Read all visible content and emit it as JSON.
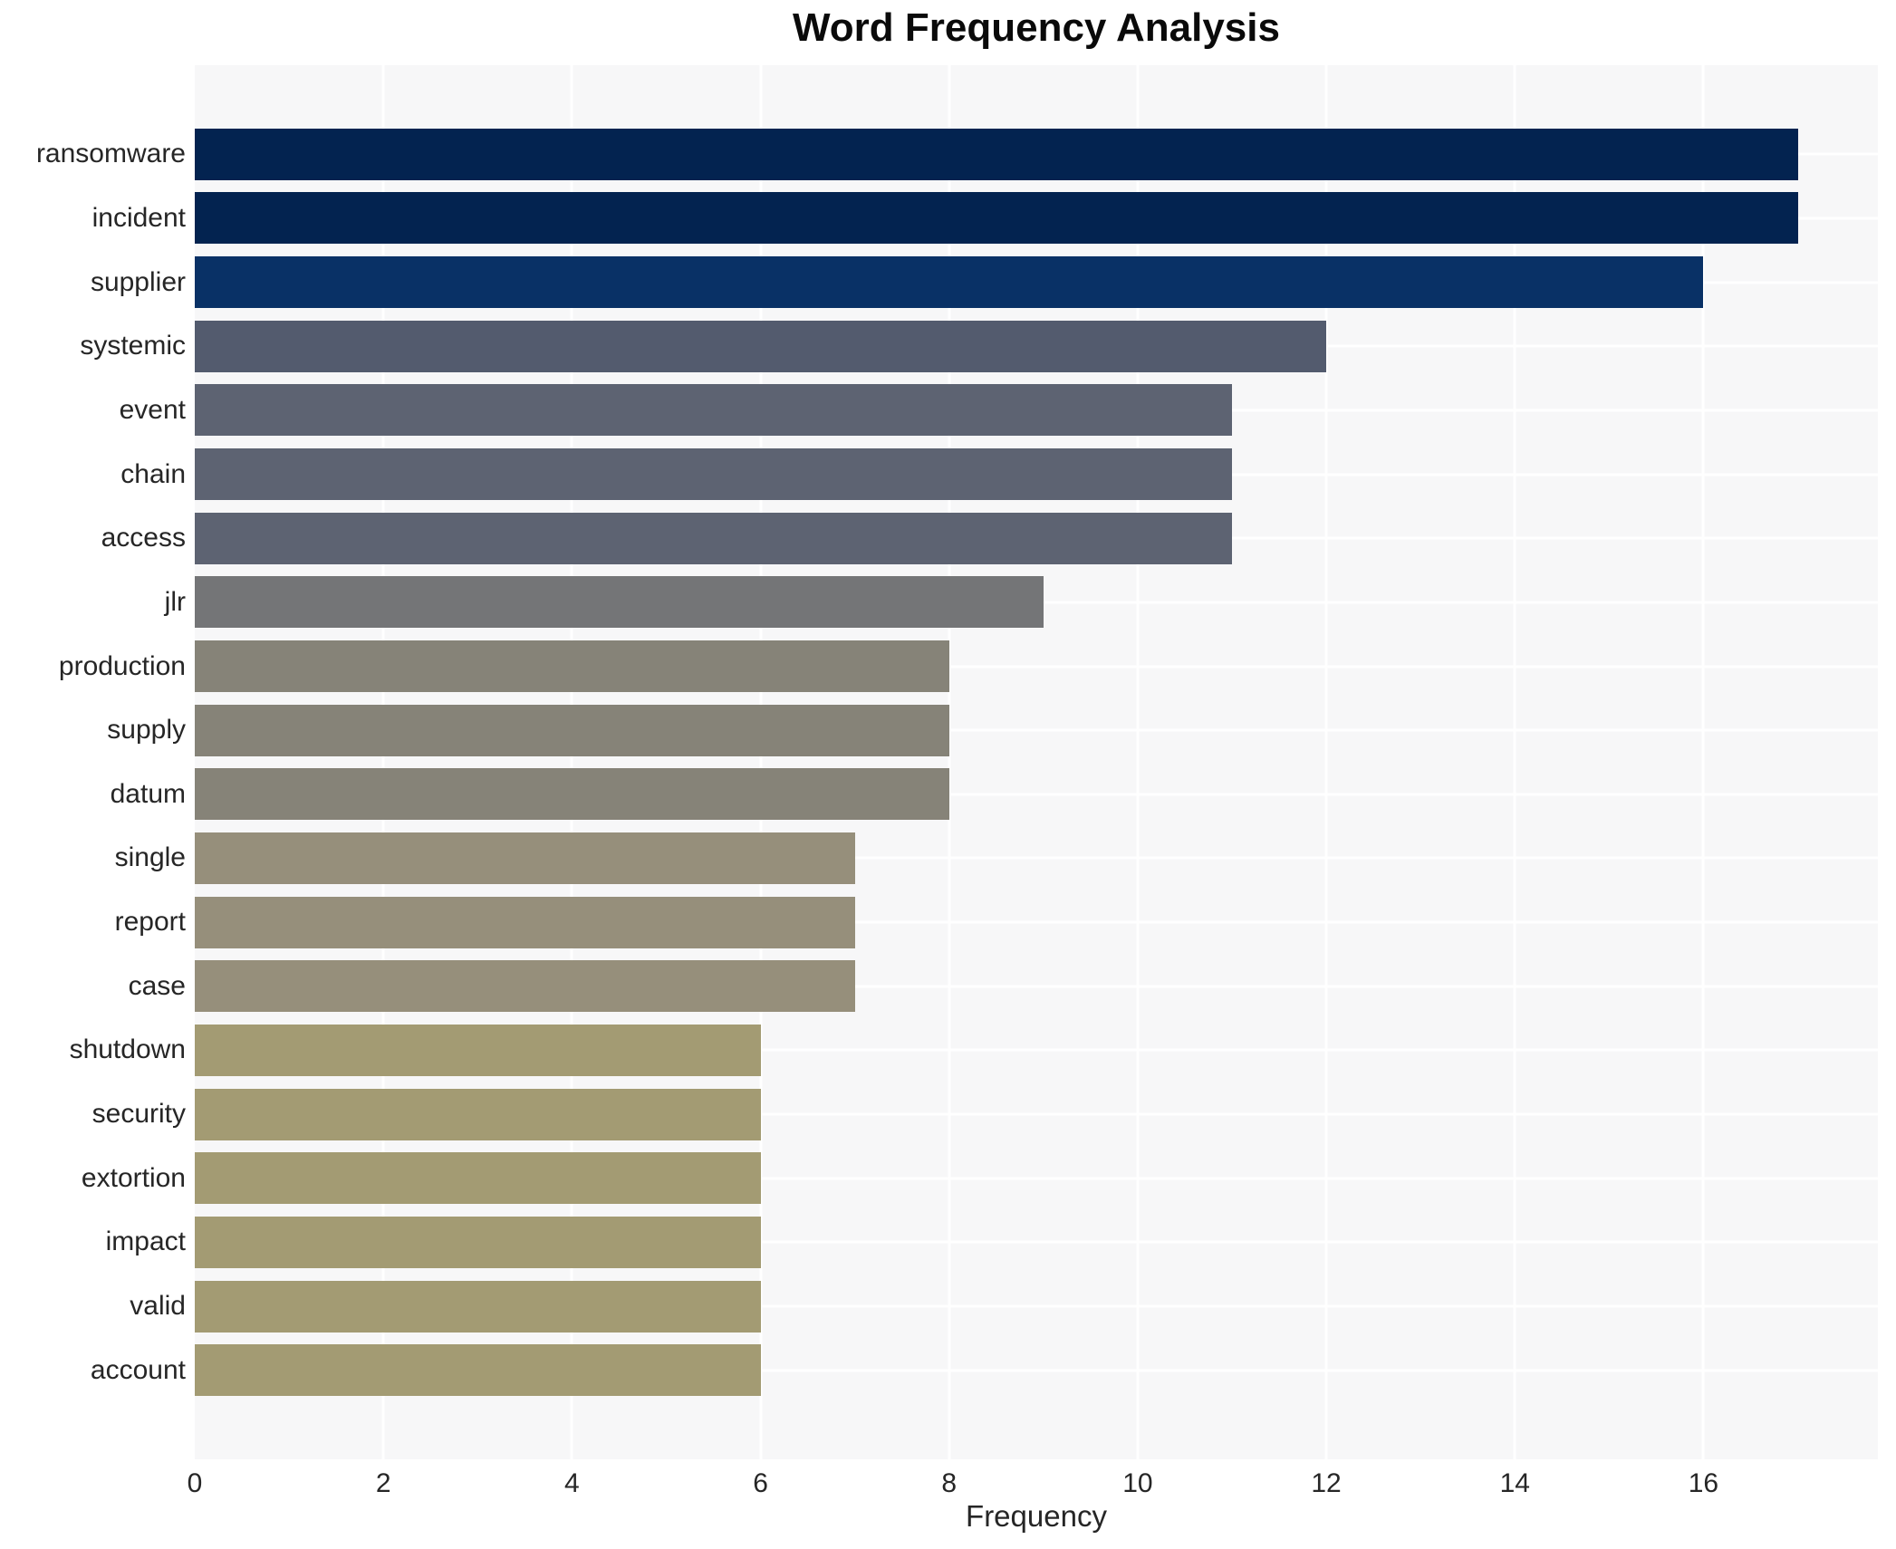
{
  "title": "Word Frequency Analysis",
  "chart_data": {
    "type": "bar",
    "orientation": "horizontal",
    "title": "Word Frequency Analysis",
    "xlabel": "Frequency",
    "ylabel": "",
    "categories": [
      "ransomware",
      "incident",
      "supplier",
      "systemic",
      "event",
      "chain",
      "access",
      "jlr",
      "production",
      "supply",
      "datum",
      "single",
      "report",
      "case",
      "shutdown",
      "security",
      "extortion",
      "impact",
      "valid",
      "account"
    ],
    "values": [
      17,
      17,
      16,
      12,
      11,
      11,
      11,
      9,
      8,
      8,
      8,
      7,
      7,
      7,
      6,
      6,
      6,
      6,
      6,
      6
    ],
    "bar_colors": [
      "#032350",
      "#032350",
      "#093166",
      "#535b6e",
      "#5d6372",
      "#5d6372",
      "#5d6372",
      "#747577",
      "#868378",
      "#868378",
      "#868378",
      "#968f7b",
      "#968f7b",
      "#968f7b",
      "#a39b73",
      "#a39b73",
      "#a39b73",
      "#a39b73",
      "#a39b73",
      "#a39b73"
    ],
    "x_ticks": [
      0,
      2,
      4,
      6,
      8,
      10,
      12,
      14,
      16
    ],
    "xlim": [
      0,
      17.85
    ],
    "grid": true,
    "legend_position": "none",
    "plot_bg": "#f7f7f8",
    "grid_color": "#ffffff",
    "text_color": "#262626",
    "title_color": "#0a0a0a"
  }
}
